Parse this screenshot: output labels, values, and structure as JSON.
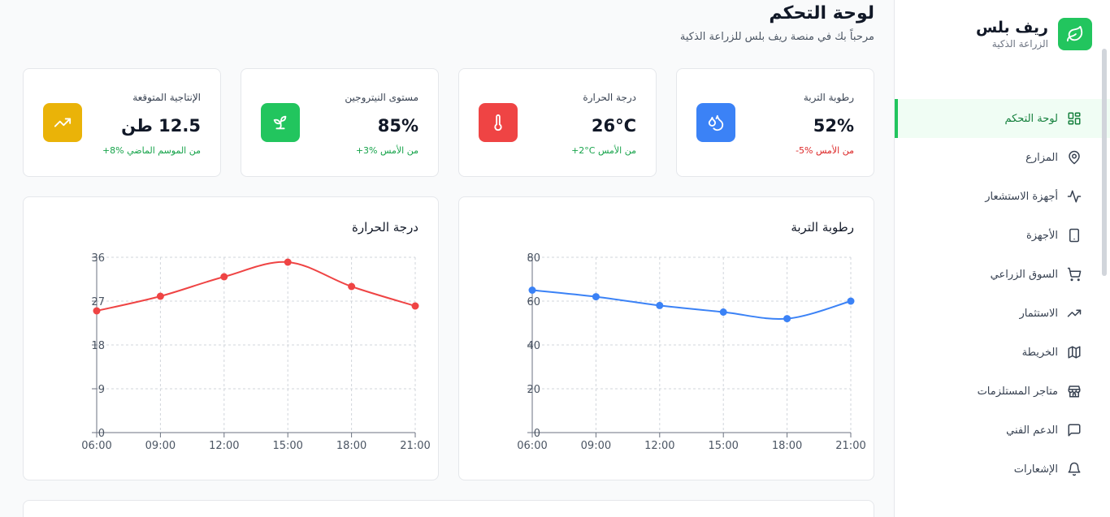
{
  "brand": {
    "name": "ريف بلس",
    "subtitle": "الزراعة الذكية"
  },
  "nav": [
    {
      "label": "لوحة التحكم",
      "icon": "dashboard-grid-icon",
      "active": true
    },
    {
      "label": "المزارع",
      "icon": "map-pin-icon"
    },
    {
      "label": "أجهزة الاستشعار",
      "icon": "activity-icon"
    },
    {
      "label": "الأجهزة",
      "icon": "device-icon"
    },
    {
      "label": "السوق الزراعي",
      "icon": "cart-icon"
    },
    {
      "label": "الاستثمار",
      "icon": "trending-up-icon"
    },
    {
      "label": "الخريطة",
      "icon": "map-icon"
    },
    {
      "label": "متاجر المستلزمات",
      "icon": "store-icon"
    },
    {
      "label": "الدعم الفني",
      "icon": "chat-icon"
    },
    {
      "label": "الإشعارات",
      "icon": "bell-icon"
    }
  ],
  "header": {
    "title": "لوحة التحكم",
    "subtitle": "مرحباً بك في منصة ريف بلس للزراعة الذكية"
  },
  "stats": [
    {
      "label": "رطوبة التربة",
      "value": "52%",
      "change": "-5% من الأمس",
      "change_color": "#dc2626",
      "icon": "droplets-icon",
      "icon_bg": "#3b82f6"
    },
    {
      "label": "درجة الحرارة",
      "value": "26°C",
      "change": "+2°C من الأمس",
      "change_color": "#16a34a",
      "icon": "thermometer-icon",
      "icon_bg": "#ef4444"
    },
    {
      "label": "مستوى النيتروجين",
      "value": "85%",
      "change": "+3% من الأمس",
      "change_color": "#16a34a",
      "icon": "sprout-icon",
      "icon_bg": "#22c55e"
    },
    {
      "label": "الإنتاجية المتوقعة",
      "value": "12.5 طن",
      "change": "+8% من الموسم الماضي",
      "change_color": "#16a34a",
      "icon": "trending-up-icon",
      "icon_bg": "#eab308"
    }
  ],
  "chart_data": [
    {
      "type": "line",
      "title": "رطوبة التربة",
      "categories": [
        "06:00",
        "09:00",
        "12:00",
        "15:00",
        "18:00",
        "21:00"
      ],
      "values": [
        65,
        62,
        58,
        55,
        52,
        60
      ],
      "yticks": [
        0,
        20,
        40,
        60,
        80
      ],
      "ylim": [
        0,
        80
      ],
      "grid": true,
      "color": "#3b82f6"
    },
    {
      "type": "line",
      "title": "درجة الحرارة",
      "categories": [
        "06:00",
        "09:00",
        "12:00",
        "15:00",
        "18:00",
        "21:00"
      ],
      "values": [
        25,
        28,
        32,
        35,
        30,
        26
      ],
      "yticks": [
        0,
        9,
        18,
        27,
        36
      ],
      "ylim": [
        0,
        36
      ],
      "grid": true,
      "color": "#ef4444"
    }
  ]
}
